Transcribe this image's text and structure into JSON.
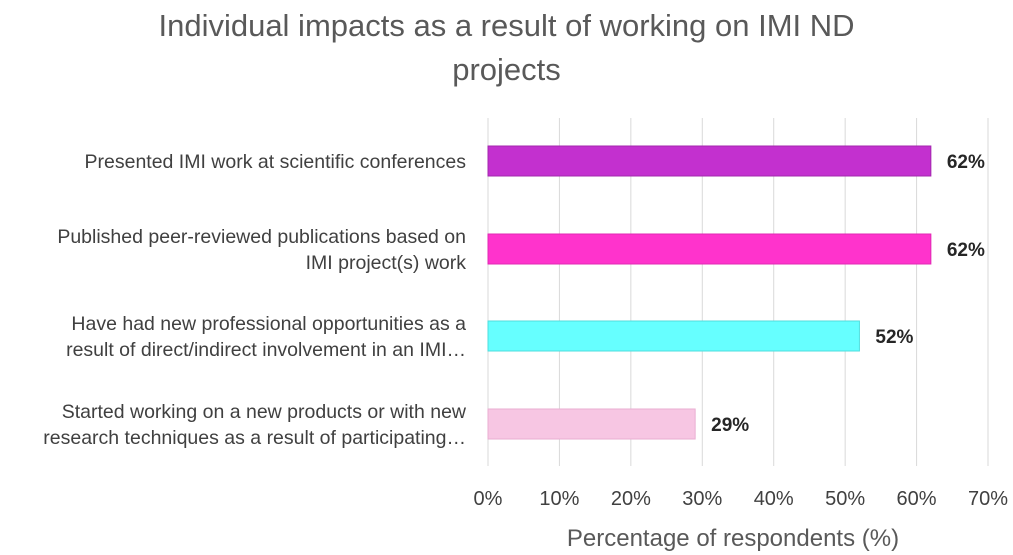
{
  "chart_data": {
    "type": "bar",
    "orientation": "horizontal",
    "title": "Individual impacts as a result of working on IMI ND projects",
    "title_lines": [
      "Individual impacts as a result of working on IMI ND",
      "projects"
    ],
    "xlabel": "Percentage of respondents (%)",
    "ylabel": "",
    "xlim": [
      0,
      70
    ],
    "x_ticks": [
      "0%",
      "10%",
      "20%",
      "30%",
      "40%",
      "50%",
      "60%",
      "70%"
    ],
    "grid": "vertical",
    "categories": [
      [
        "Presented IMI work at scientific conferences"
      ],
      [
        "Published peer-reviewed publications based on",
        "IMI project(s) work"
      ],
      [
        "Have had new professional opportunities as a",
        "result of direct/indirect involvement in an IMI…"
      ],
      [
        "Started working on a new products or with new",
        "research techniques as a result of participating…"
      ]
    ],
    "values": [
      62,
      62,
      52,
      29
    ],
    "value_labels": [
      "62%",
      "62%",
      "52%",
      "29%"
    ],
    "bar_colors": [
      "#c330cf",
      "#ff33cc",
      "#66ffff",
      "#f7c6e3"
    ],
    "bar_edge_colors": [
      "#a327ae",
      "#e028b3",
      "#4fdede",
      "#e9aed2"
    ]
  }
}
